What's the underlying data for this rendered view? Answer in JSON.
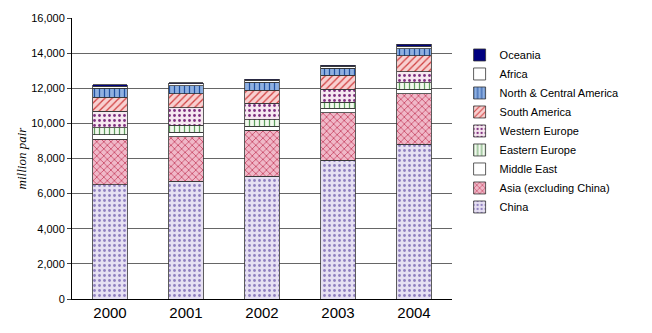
{
  "chart_data": {
    "type": "bar",
    "stacked": true,
    "y_label": "million pair",
    "categories": [
      "2000",
      "2001",
      "2002",
      "2003",
      "2004"
    ],
    "ylim": [
      0,
      16000
    ],
    "yticks": [
      0,
      {
        "value": 2000,
        "label": "2,000"
      },
      {
        "value": 4000,
        "label": "4,000"
      },
      {
        "value": 6000,
        "label": "6,000"
      },
      {
        "value": 8000,
        "label": "8,000"
      },
      {
        "value": 10000,
        "label": "10,000"
      },
      {
        "value": 12000,
        "label": "12,000"
      },
      {
        "value": 14000,
        "label": "14,000"
      },
      {
        "value": 16000,
        "label": "16,000"
      }
    ],
    "grid": true,
    "legend": "right",
    "series": [
      {
        "name": "China",
        "color": "#e6e0f2",
        "values": [
          6500,
          6700,
          7000,
          7900,
          8800
        ]
      },
      {
        "name": "Asia (excluding China)",
        "color": "#f0b8c8",
        "values": [
          2600,
          2550,
          2600,
          2700,
          2900
        ]
      },
      {
        "name": "Middle East",
        "color": "#ffffff",
        "values": [
          250,
          250,
          250,
          250,
          250
        ]
      },
      {
        "name": "Eastern Europe",
        "color": "#f2f8ee",
        "values": [
          400,
          400,
          350,
          350,
          350
        ]
      },
      {
        "name": "Western Europe",
        "color": "#f6e8f0",
        "values": [
          950,
          1000,
          950,
          750,
          650
        ]
      },
      {
        "name": "South America",
        "color": "#f8d0d0",
        "values": [
          800,
          800,
          750,
          800,
          900
        ]
      },
      {
        "name": "North & Central America",
        "color": "#8fb0e0",
        "values": [
          500,
          450,
          450,
          400,
          400
        ]
      },
      {
        "name": "Africa",
        "color": "#ffffff",
        "values": [
          100,
          100,
          100,
          100,
          150
        ]
      },
      {
        "name": "Oceania",
        "color": "#000080",
        "values": [
          100,
          50,
          50,
          50,
          100
        ]
      }
    ]
  }
}
